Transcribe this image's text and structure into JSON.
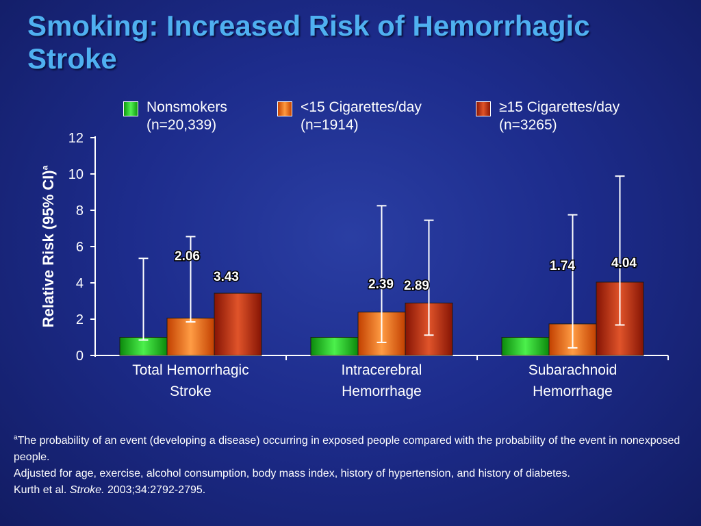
{
  "slide": {
    "title": "Smoking: Increased Risk of Hemorrhagic Stroke"
  },
  "colors": {
    "background": "#1d2c8c",
    "title": "#4fb0f0",
    "nonsmokers": "#22d422",
    "lt15": "#ff6a08",
    "ge15": "#c42c10"
  },
  "chart_data": {
    "type": "bar",
    "ylabel": "Relative Risk (95% CI)",
    "ylabel_superscript": "a",
    "ylim": [
      0,
      12
    ],
    "yticks": [
      "0",
      "2",
      "4",
      "6",
      "8",
      "10",
      "12"
    ],
    "grid": false,
    "legend_placement": "top",
    "categories": [
      [
        "Total Hemorrhagic",
        "Stroke"
      ],
      [
        "Intracerebral",
        "Hemorrhage"
      ],
      [
        "Subarachnoid",
        "Hemorrhage"
      ]
    ],
    "series": [
      {
        "name": "Nonsmokers",
        "name_line2": "(n=20,339)",
        "color": "#22d422",
        "values": [
          1,
          1,
          1
        ],
        "ci_low": [
          0.85,
          1,
          1
        ],
        "ci_high": [
          5.35,
          1,
          1
        ],
        "labels": [
          "",
          "",
          ""
        ]
      },
      {
        "name": "<15 Cigarettes/day",
        "name_line2": "(n=1914)",
        "color": "#ff6a08",
        "values": [
          2.06,
          2.39,
          1.74
        ],
        "ci_low": [
          1.85,
          0.72,
          0.42
        ],
        "ci_high": [
          6.55,
          8.25,
          7.75
        ],
        "labels": [
          "2.06",
          "2.39",
          "1.74"
        ]
      },
      {
        "name": "≥15 Cigarettes/day",
        "name_line2": "(n=3265)",
        "color": "#c42c10",
        "values": [
          3.43,
          2.89,
          4.04
        ],
        "ci_low": [
          3.43,
          1.12,
          1.68
        ],
        "ci_high": [
          3.43,
          7.45,
          9.88
        ],
        "labels": [
          "3.43",
          "2.89",
          "4.04"
        ]
      }
    ]
  },
  "footnotes": {
    "line1_sup": "a",
    "line1_text": "The probability of an event (developing a disease) occurring in exposed people compared with the probability of the event in nonexposed people.",
    "line2": "Adjusted for age, exercise, alcohol consumption, body mass index, history of hypertension, and history of diabetes.",
    "citation_author": "Kurth et al. ",
    "citation_journal": "Stroke.",
    "citation_rest": " 2003;34:2792-2795."
  }
}
